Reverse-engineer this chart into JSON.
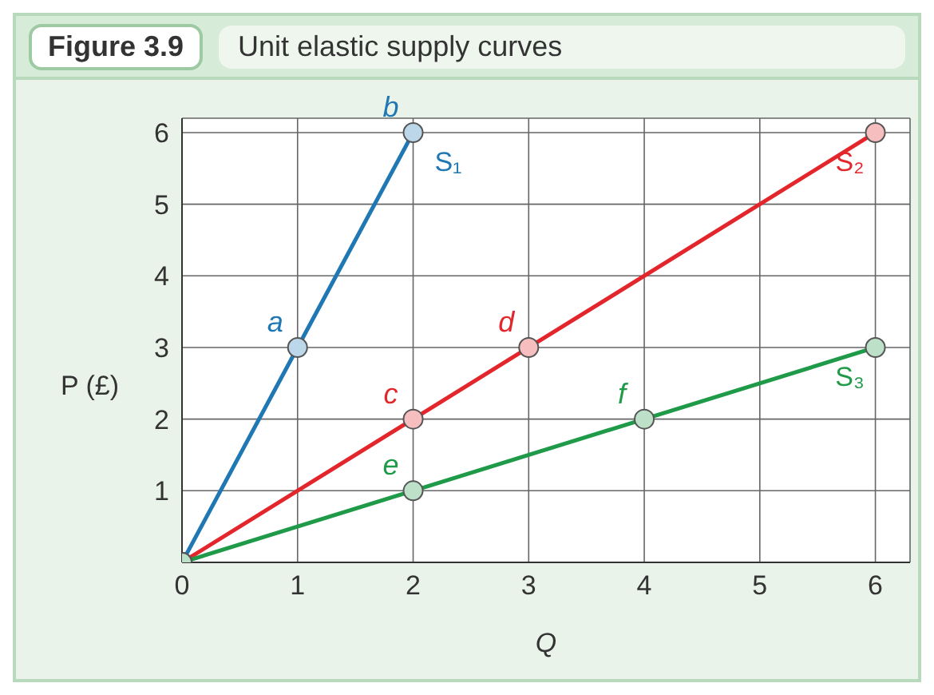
{
  "chart_data": {
    "type": "line",
    "title": "Figure 3.9",
    "subtitle": "Unit elastic supply curves",
    "xlabel": "Q",
    "ylabel": "P (£)",
    "series": [
      {
        "name": "S₁",
        "color": "#1f78b4",
        "x": [
          0,
          1,
          2
        ],
        "values": [
          0,
          3,
          6
        ]
      },
      {
        "name": "S₂",
        "color": "#e3262b",
        "x": [
          0,
          2,
          3,
          6
        ],
        "values": [
          0,
          2,
          3,
          6
        ]
      },
      {
        "name": "S₃",
        "color": "#1e9a48",
        "x": [
          0,
          2,
          4,
          6
        ],
        "values": [
          0,
          1,
          2,
          3
        ]
      }
    ],
    "annotations": [
      {
        "text": "a",
        "x": 1,
        "y": 3
      },
      {
        "text": "b",
        "x": 2,
        "y": 6
      },
      {
        "text": "c",
        "x": 2,
        "y": 2
      },
      {
        "text": "d",
        "x": 3,
        "y": 3
      },
      {
        "text": "e",
        "x": 2,
        "y": 1
      },
      {
        "text": "f",
        "x": 4,
        "y": 2
      }
    ],
    "xlim": [
      0,
      6.3
    ],
    "ylim": [
      0,
      6.2
    ],
    "xticks": [
      0,
      1,
      2,
      3,
      4,
      5,
      6
    ],
    "yticks": [
      1,
      2,
      3,
      4,
      5,
      6
    ],
    "grid": true,
    "legend": false,
    "marker": "circle",
    "line_style": "solid"
  }
}
